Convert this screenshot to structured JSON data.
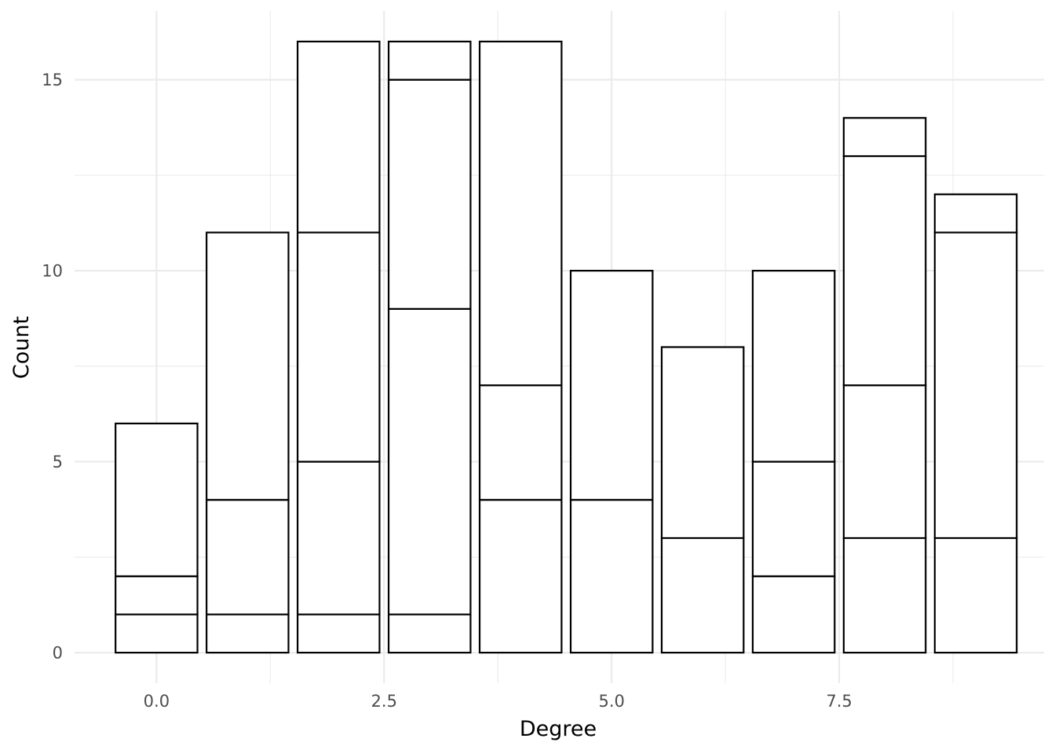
{
  "chart_data": {
    "type": "bar",
    "stacked": true,
    "title": "",
    "xlabel": "Degree",
    "ylabel": "Count",
    "x": [
      0,
      1,
      2,
      3,
      4,
      5,
      6,
      7,
      8,
      9
    ],
    "segment_boundaries": [
      [
        1,
        2,
        6
      ],
      [
        1,
        4,
        11
      ],
      [
        1,
        5,
        11,
        16
      ],
      [
        1,
        9,
        15,
        16
      ],
      [
        4,
        7,
        16
      ],
      [
        4,
        10
      ],
      [
        3,
        8
      ],
      [
        2,
        5,
        10
      ],
      [
        3,
        7,
        13,
        14
      ],
      [
        3,
        11,
        12
      ]
    ],
    "totals": [
      6,
      11,
      16,
      16,
      16,
      10,
      8,
      10,
      14,
      12
    ],
    "xlim": [
      -0.9,
      9.75
    ],
    "ylim": [
      -0.8,
      16.8
    ],
    "x_ticks": [
      0,
      2.5,
      5,
      7.5
    ],
    "x_tick_labels": [
      "0.0",
      "2.5",
      "5.0",
      "7.5"
    ],
    "x_minor_ticks": [
      1.25,
      3.75,
      6.25,
      8.75
    ],
    "y_ticks": [
      0,
      5,
      10,
      15
    ],
    "y_tick_labels": [
      "0",
      "5",
      "10",
      "15"
    ],
    "y_minor_ticks": [
      2.5,
      7.5,
      12.5
    ],
    "grid": true,
    "legend": "none",
    "bar_fill": "#ffffff",
    "bar_stroke": "#000000",
    "grid_color": "#ebebeb"
  }
}
